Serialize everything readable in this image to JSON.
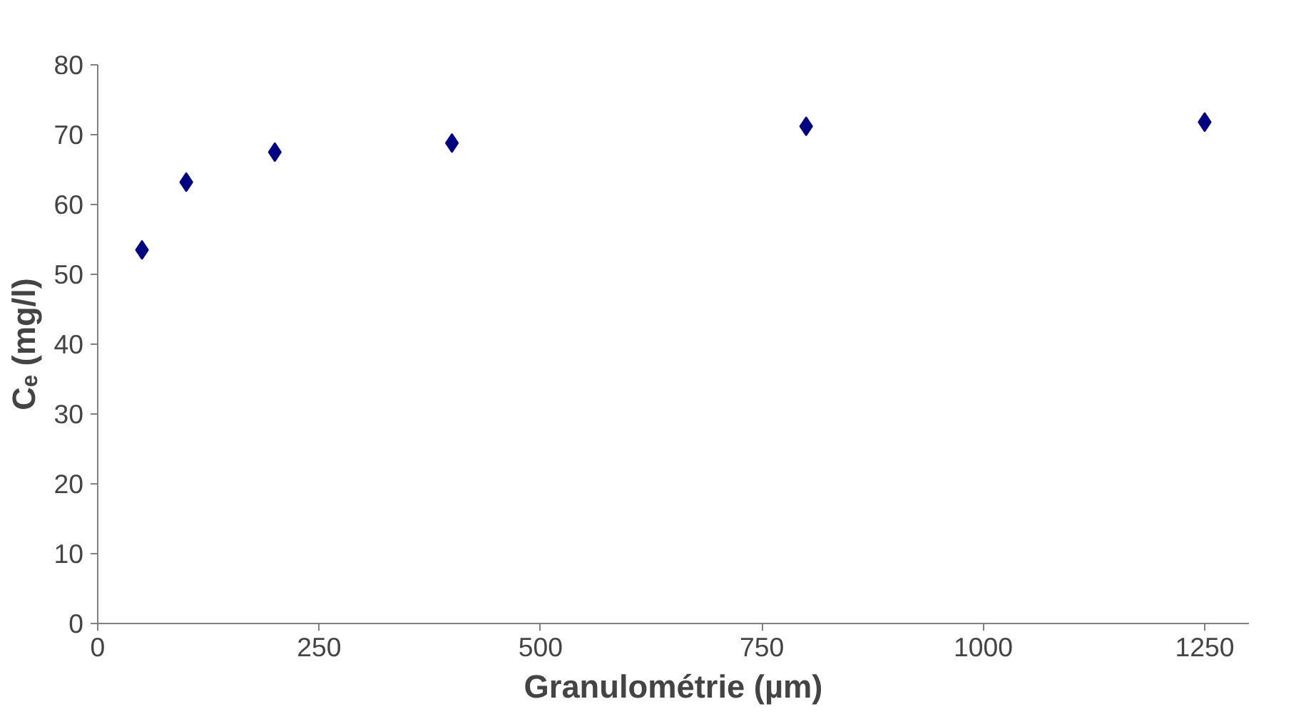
{
  "chart_data": {
    "type": "scatter",
    "xlabel": "Granulométrie (µm)",
    "ylabel": "Cₑ (mg/l)",
    "x": [
      50,
      100,
      200,
      400,
      800,
      1250
    ],
    "series": [
      {
        "color": "#000080",
        "values": [
          53.5,
          63.2,
          67.5,
          68.8,
          71.2,
          71.8
        ]
      }
    ],
    "xlim": [
      0,
      1300
    ],
    "xticks": [
      0,
      250,
      500,
      750,
      1000,
      1250
    ],
    "ylim": [
      0,
      80
    ],
    "yticks": [
      0,
      10,
      20,
      30,
      40,
      50,
      60,
      70,
      80
    ],
    "marker": "diamond",
    "grid": false
  }
}
